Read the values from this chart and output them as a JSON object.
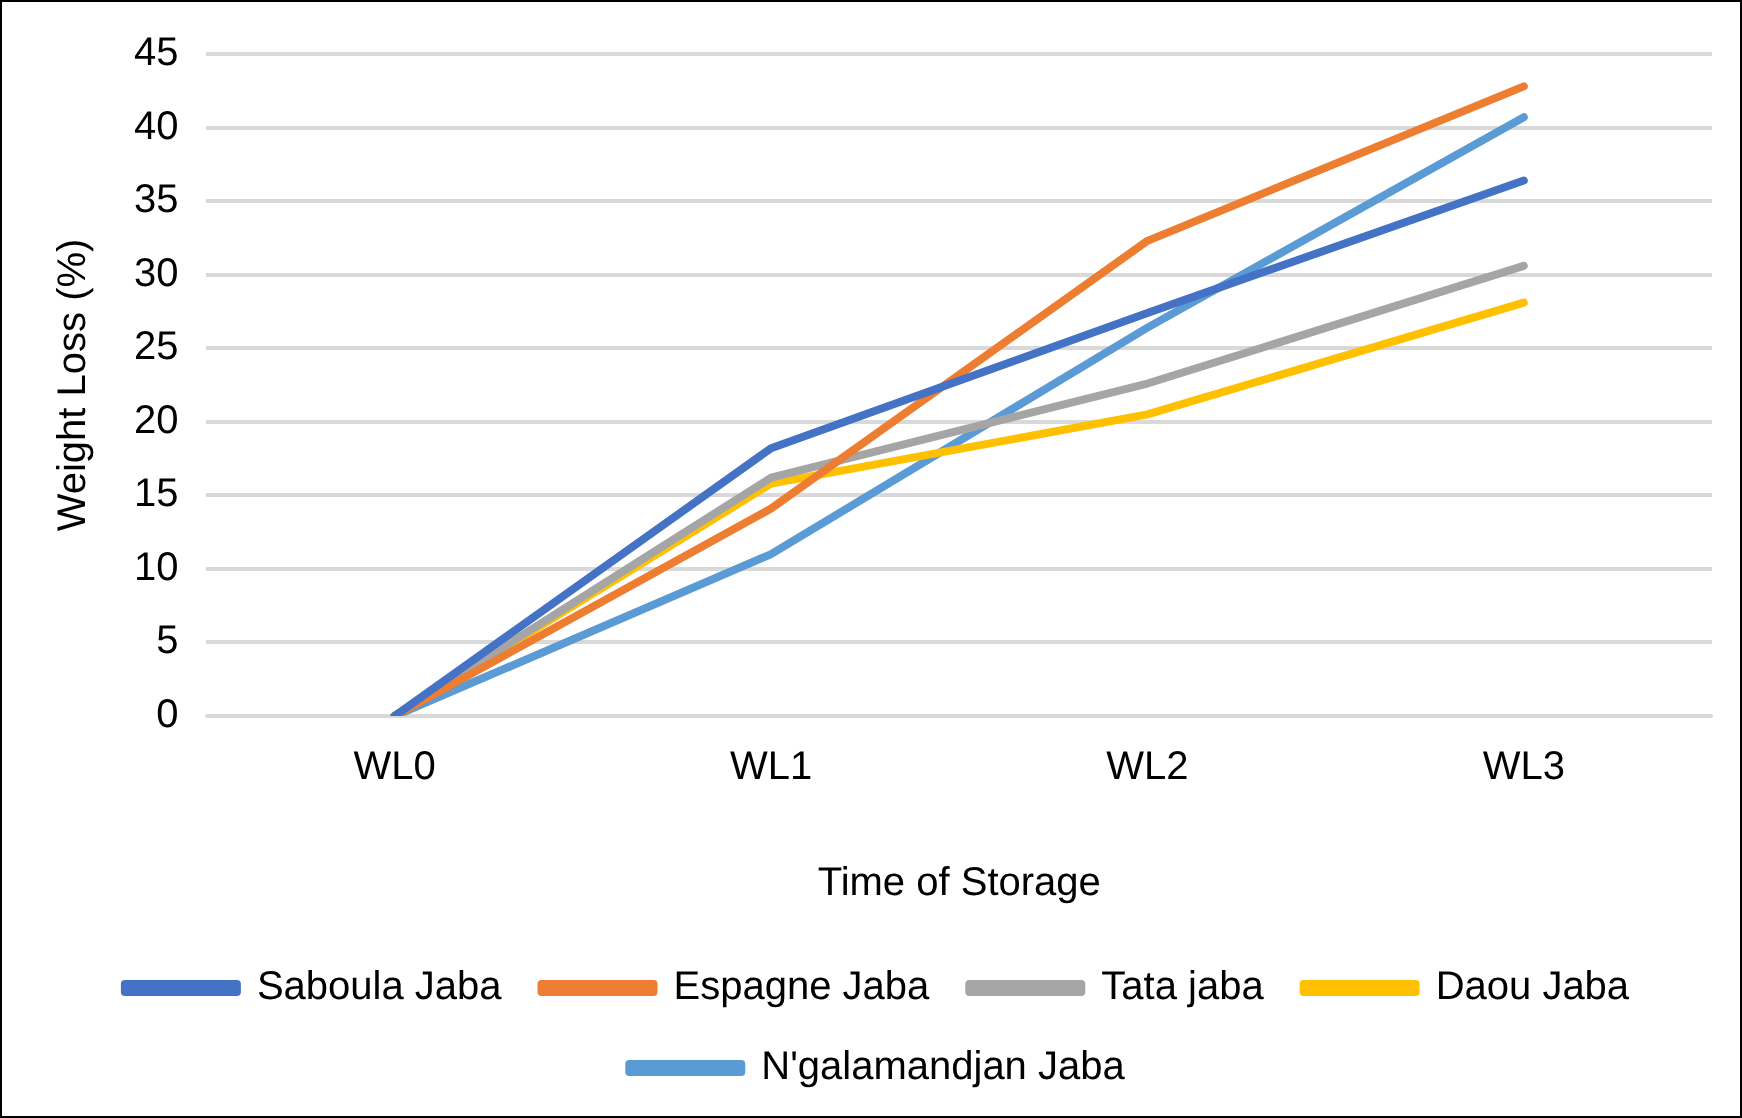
{
  "chart_data": {
    "type": "line",
    "xlabel": "Time of Storage",
    "ylabel": "Weight Loss (%)",
    "categories": [
      "WL0",
      "WL1",
      "WL2",
      "WL3"
    ],
    "series": [
      {
        "name": "Saboula Jaba",
        "color": "#4472c4",
        "values": [
          0,
          18.2,
          27.4,
          36.4
        ]
      },
      {
        "name": "Espagne Jaba",
        "color": "#ed7d31",
        "values": [
          0,
          14.1,
          32.3,
          42.8
        ]
      },
      {
        "name": "Tata jaba",
        "color": "#a5a5a5",
        "values": [
          0,
          16.2,
          22.6,
          30.6
        ]
      },
      {
        "name": "Daou Jaba",
        "color": "#ffc000",
        "values": [
          0,
          15.8,
          20.5,
          28.1
        ]
      },
      {
        "name": "N'galamandjan Jaba",
        "color": "#5b9bd5",
        "values": [
          0,
          11.0,
          26.4,
          40.7
        ]
      }
    ],
    "ylim": [
      0,
      45
    ],
    "yticks": [
      0,
      5,
      10,
      15,
      20,
      25,
      30,
      35,
      40,
      45
    ],
    "grid": "y",
    "legend": "bottom",
    "marker": "none",
    "line_style": "solid"
  }
}
